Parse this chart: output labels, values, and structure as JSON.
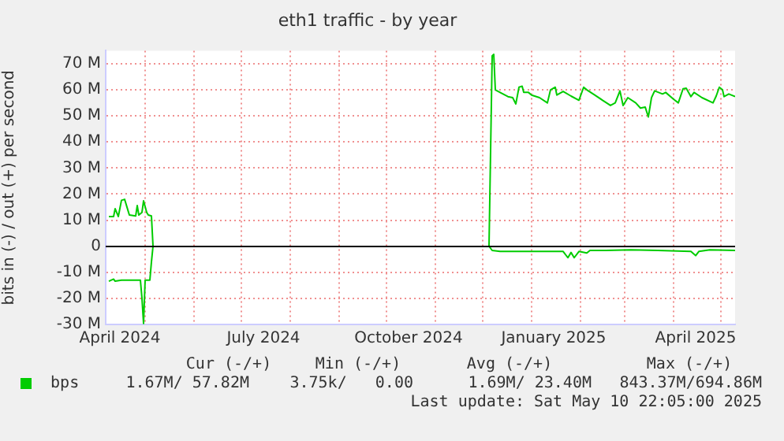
{
  "chart_data": {
    "type": "line",
    "title": "eth1 traffic - by year",
    "ylabel": "bits in (-) / out (+) per second",
    "xlim": [
      "2024-04-06",
      "2025-05-10"
    ],
    "xticks": [
      {
        "value": "2024-04-15",
        "label": "April 2024"
      },
      {
        "value": "2024-05-01",
        "label": null
      },
      {
        "value": "2024-06-01",
        "label": null
      },
      {
        "value": "2024-07-01",
        "label": null
      },
      {
        "value": "2024-07-15",
        "label": "July 2024"
      },
      {
        "value": "2024-08-01",
        "label": null
      },
      {
        "value": "2024-09-01",
        "label": null
      },
      {
        "value": "2024-10-01",
        "label": null
      },
      {
        "value": "2024-10-15",
        "label": "October 2024"
      },
      {
        "value": "2024-11-01",
        "label": null
      },
      {
        "value": "2024-12-01",
        "label": null
      },
      {
        "value": "2025-01-01",
        "label": null
      },
      {
        "value": "2025-01-15",
        "label": "January 2025"
      },
      {
        "value": "2025-02-01",
        "label": null
      },
      {
        "value": "2025-03-01",
        "label": null
      },
      {
        "value": "2025-04-01",
        "label": null
      },
      {
        "value": "2025-04-15",
        "label": "April 2025"
      },
      {
        "value": "2025-05-01",
        "label": null
      }
    ],
    "ylim": [
      -30,
      75
    ],
    "yticks": [
      {
        "value": -30,
        "label": "-30 M"
      },
      {
        "value": -20,
        "label": "-20 M"
      },
      {
        "value": -10,
        "label": "-10 M"
      },
      0,
      {
        "value": 10,
        "label": "10 M"
      },
      {
        "value": 20,
        "label": "20 M"
      },
      {
        "value": 30,
        "label": "30 M"
      },
      {
        "value": 40,
        "label": "40 M"
      },
      {
        "value": 50,
        "label": "50 M"
      },
      {
        "value": 60,
        "label": "60 M"
      },
      {
        "value": 70,
        "label": "70 M"
      }
    ],
    "grid": true,
    "legend": "bottom left",
    "marker": "none",
    "line_style": "solid",
    "ref_lines": [
      {
        "axis": "y",
        "value": 0,
        "color": "#000000"
      }
    ],
    "series": [
      {
        "name": "bps",
        "color": "#00cc00",
        "x": [
          "2024-04-08",
          "2024-04-11",
          "2024-04-12",
          "2024-04-14",
          "2024-04-16",
          "2024-04-18",
          "2024-04-20",
          "2024-04-21",
          "2024-04-25",
          "2024-04-26",
          "2024-04-27",
          "2024-04-29",
          "2024-04-30",
          "2024-05-02",
          "2024-05-03",
          "2024-05-05",
          "2024-05-06",
          "2024-08-01",
          "2024-12-05",
          "2024-12-07",
          "2024-12-08",
          "2024-12-09",
          "2024-12-12",
          "2024-12-17",
          "2024-12-20",
          "2024-12-22",
          "2024-12-24",
          "2024-12-26",
          "2024-12-27",
          "2024-12-30",
          "2025-01-01",
          "2025-01-06",
          "2025-01-11",
          "2025-01-13",
          "2025-01-16",
          "2025-01-17",
          "2025-01-21",
          "2025-01-26",
          "2025-01-31",
          "2025-02-03",
          "2025-02-05",
          "2025-02-10",
          "2025-02-15",
          "2025-02-20",
          "2025-02-23",
          "2025-02-26",
          "2025-02-28",
          "2025-03-03",
          "2025-03-08",
          "2025-03-11",
          "2025-03-14",
          "2025-03-16",
          "2025-03-18",
          "2025-03-20",
          "2025-03-25",
          "2025-03-27",
          "2025-04-01",
          "2025-04-04",
          "2025-04-07",
          "2025-04-09",
          "2025-04-12",
          "2025-04-14",
          "2025-04-19",
          "2025-04-26",
          "2025-04-28",
          "2025-04-30",
          "2025-05-02",
          "2025-05-03",
          "2025-05-06",
          "2025-05-10"
        ],
        "values": [
          11.4,
          11.4,
          14.4,
          11.4,
          17.6,
          18,
          14,
          12,
          11.6,
          15.6,
          12,
          13,
          17.4,
          13,
          12,
          11.6,
          0,
          null,
          0,
          73,
          73.6,
          60,
          59,
          57.4,
          57,
          54.6,
          61,
          61.4,
          59,
          59,
          58,
          57,
          55,
          60,
          61,
          58,
          59.4,
          57.6,
          56,
          61,
          60,
          58,
          56,
          54,
          55,
          59.6,
          54,
          57,
          55,
          53,
          53.4,
          49.6,
          57,
          59.6,
          58.4,
          59,
          56.4,
          55,
          60.4,
          60.6,
          57.4,
          59,
          57,
          55,
          57.6,
          61,
          60,
          57.4,
          58.4,
          57.4
        ]
      },
      {
        "color": "#00cc00",
        "x": [
          "2024-04-08",
          "2024-04-11",
          "2024-04-12",
          "2024-04-16",
          "2024-04-26",
          "2024-04-28",
          "2024-04-29",
          "2024-04-30",
          "2024-05-01",
          "2024-05-04",
          "2024-05-05",
          "2024-05-06",
          "2024-08-01",
          "2024-12-05",
          "2024-12-07",
          "2024-12-12",
          "2025-01-21",
          "2025-01-24",
          "2025-01-26",
          "2025-01-28",
          "2025-01-31",
          "2025-02-05",
          "2025-02-07",
          "2025-02-17",
          "2025-03-05",
          "2025-03-22",
          "2025-04-12",
          "2025-04-15",
          "2025-04-17",
          "2025-04-24",
          "2025-05-10"
        ],
        "values": [
          -13.4,
          -12.6,
          -13.4,
          -13,
          -13,
          -13,
          -20,
          -29.6,
          -13,
          -13,
          -6,
          0,
          null,
          0,
          -1.6,
          -2,
          -2,
          -4.4,
          -2.4,
          -4.4,
          -2,
          -2.6,
          -1.6,
          -1.6,
          -1.4,
          -1.6,
          -2,
          -3.6,
          -2,
          -1.4,
          -1.6
        ]
      }
    ],
    "annotations": [
      "Cur (-/+)",
      "Min (-/+)",
      "Avg (-/+)",
      "Max (-/+)",
      "1.67M/ 57.82M",
      "3.75k/   0.00",
      "1.69M/ 23.40M",
      "843.37M/694.86M",
      "Last update: Sat May 10 22:05:00 2025"
    ]
  }
}
